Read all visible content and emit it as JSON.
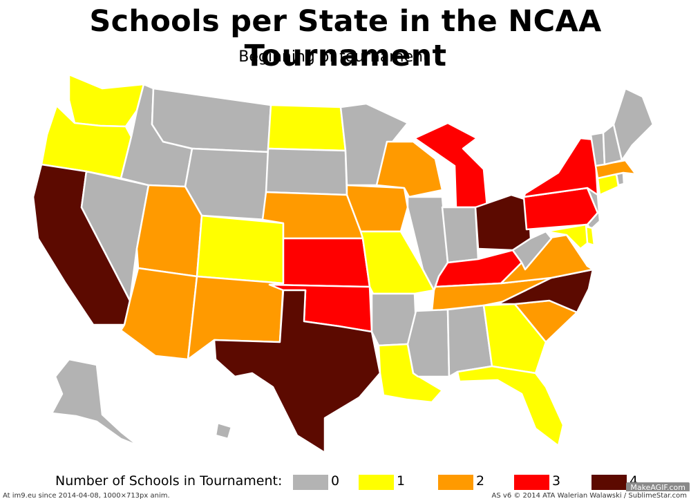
{
  "title": "Schools per State in the NCAA Tournament",
  "subtitle": "Beginning of tournament",
  "legend": {
    "label": "Number of Schools in Tournament:",
    "items": [
      {
        "value": "0",
        "color": "#b3b3b3"
      },
      {
        "value": "1",
        "color": "#ffff00"
      },
      {
        "value": "2",
        "color": "#ff9a00"
      },
      {
        "value": "3",
        "color": "#ff0000"
      },
      {
        "value": "4",
        "color": "#5c0a00"
      }
    ]
  },
  "states": {
    "WA": 1,
    "OR": 1,
    "CA": 4,
    "NV": 0,
    "ID": 0,
    "MT": 0,
    "WY": 0,
    "UT": 2,
    "AZ": 2,
    "CO": 1,
    "NM": 2,
    "ND": 1,
    "SD": 0,
    "NE": 2,
    "KS": 3,
    "OK": 3,
    "TX": 4,
    "MN": 0,
    "IA": 2,
    "MO": 1,
    "AR": 0,
    "LA": 1,
    "WI": 2,
    "IL": 0,
    "MI": 3,
    "IN": 0,
    "OH": 4,
    "KY": 3,
    "TN": 2,
    "MS": 0,
    "AL": 0,
    "GA": 1,
    "FL": 1,
    "SC": 2,
    "NC": 4,
    "VA": 2,
    "WV": 0,
    "PA": 3,
    "NY": 3,
    "VT": 0,
    "NH": 0,
    "ME": 0,
    "MA": 2,
    "CT": 1,
    "RI": 0,
    "NJ": 0,
    "DE": 1,
    "MD": 1,
    "AK": 0,
    "HI": 0
  },
  "footer": {
    "left": "At im9.eu  since 2014-04-08, 1000×713px anim.",
    "right": "AS v6 © 2014 ATA Walerian Walawski / SublimeStar.com",
    "watermark": "MakeAGIF.com"
  }
}
